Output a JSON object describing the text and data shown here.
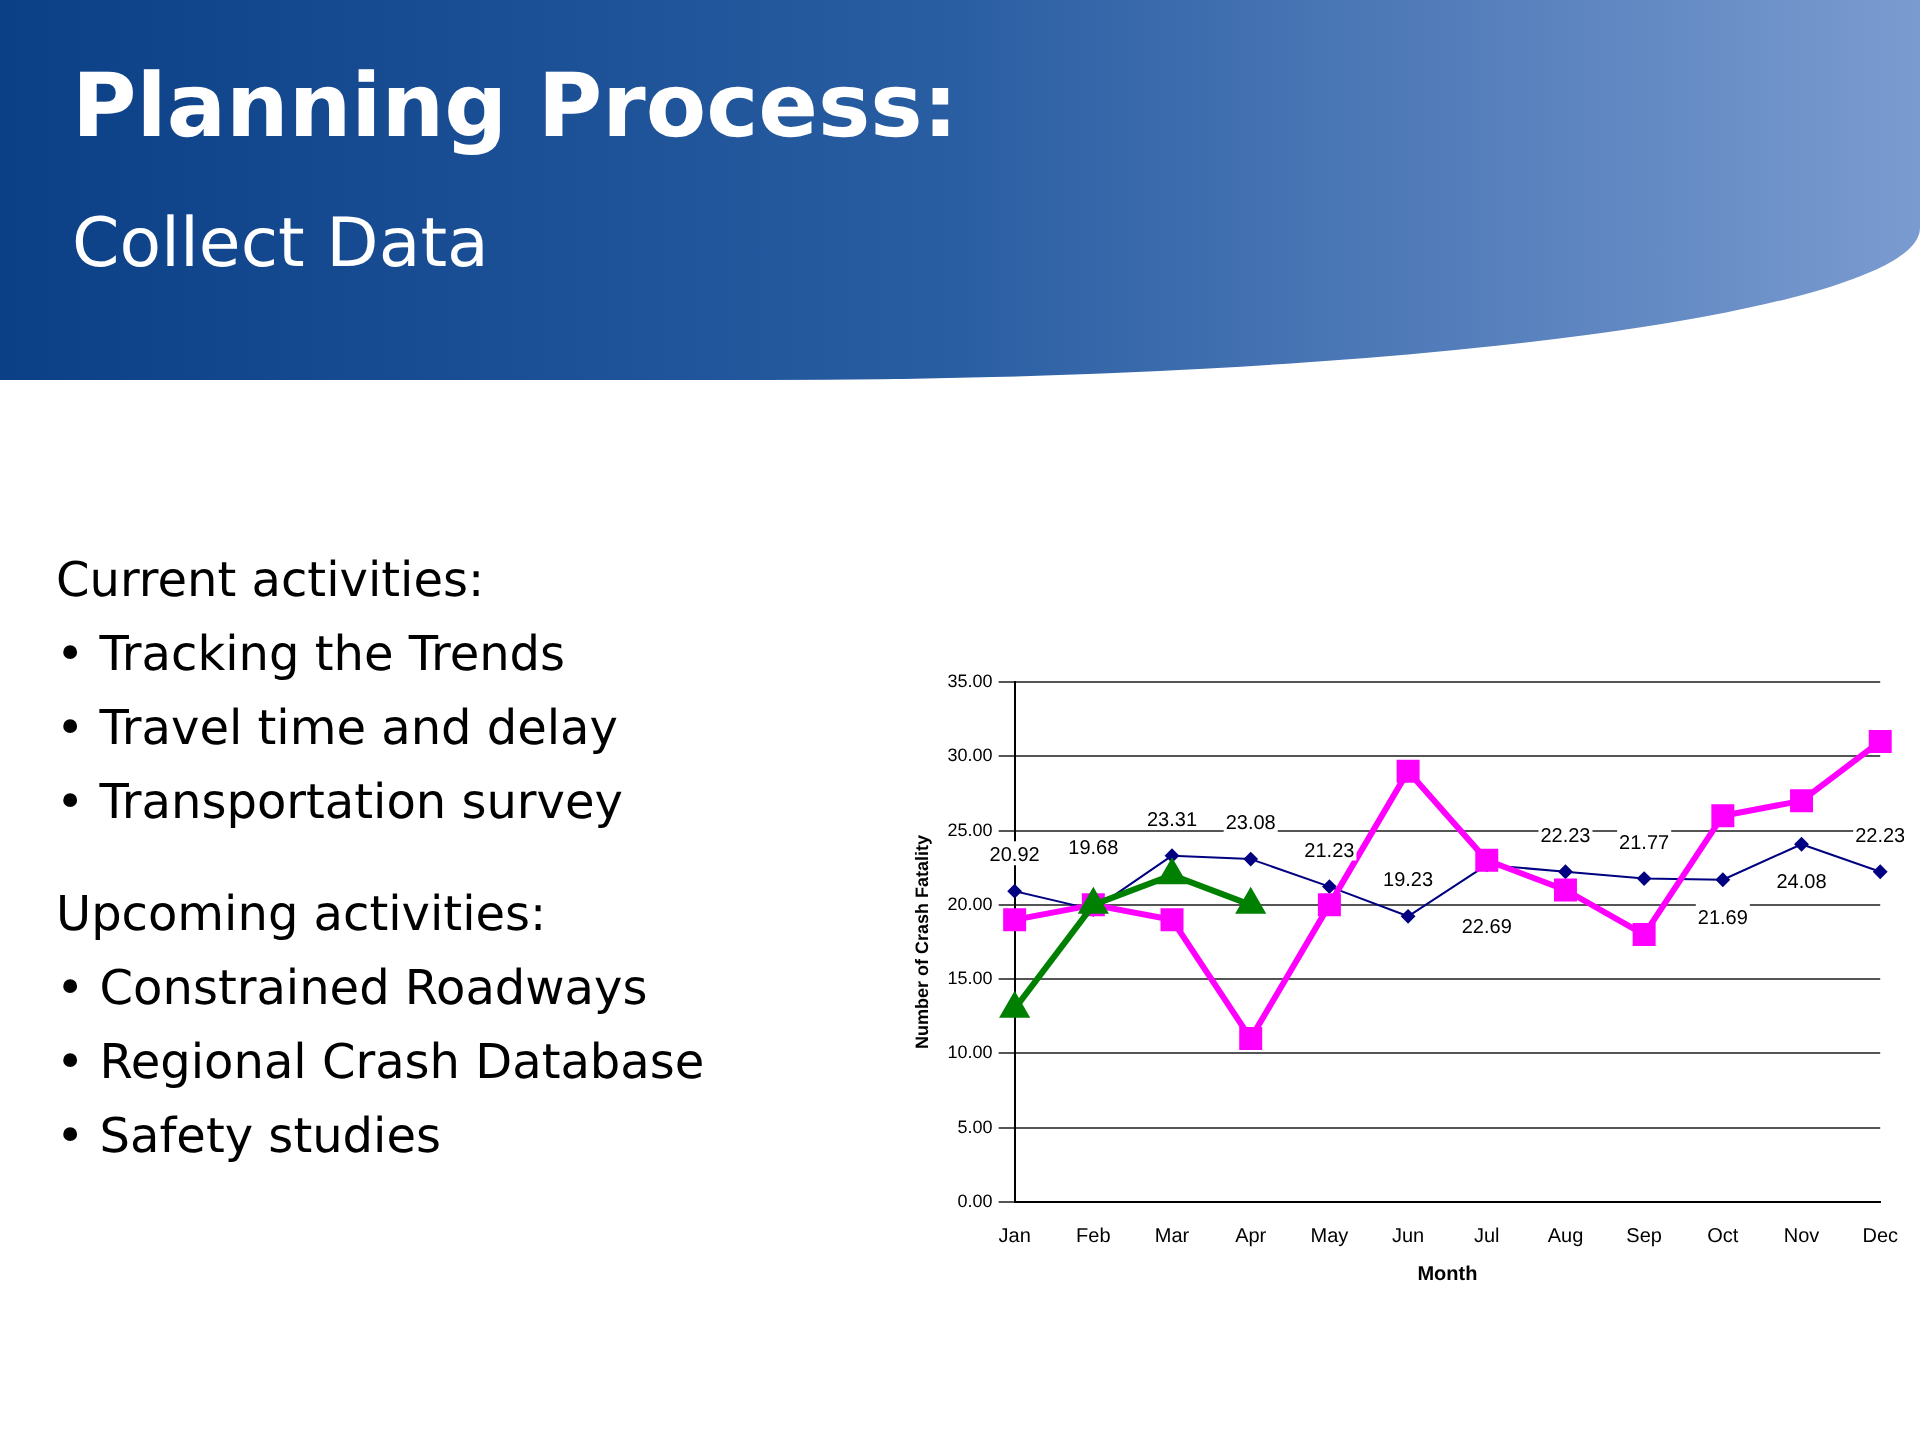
{
  "chart_data": {
    "type": "line",
    "title": "Planning Process:",
    "subtitle": "Collect Data",
    "xlabel": "Month",
    "ylabel": "Number of Crash Fatality",
    "categories": [
      "Jan",
      "Feb",
      "Mar",
      "Apr",
      "May",
      "Jun",
      "Jul",
      "Aug",
      "Sep",
      "Oct",
      "Nov",
      "Dec"
    ],
    "series": [
      {
        "color": "#000080",
        "marker": "diamond",
        "values": [
          20.92,
          19.68,
          23.31,
          23.08,
          21.23,
          19.23,
          22.69,
          22.23,
          21.77,
          21.69,
          24.08,
          22.23
        ],
        "value_labels": [
          "20.92",
          "19.68",
          "23.31",
          "23.08",
          "21.23",
          "19.23",
          "22.69",
          "22.23",
          "21.77",
          "21.69",
          "24.08",
          "22.23"
        ]
      },
      {
        "color": "#ff00ff",
        "marker": "square",
        "values": [
          19,
          20,
          19,
          11,
          20,
          29,
          23,
          21,
          18,
          26,
          27,
          31
        ]
      },
      {
        "color": "#008000",
        "marker": "triangle",
        "values": [
          13,
          20,
          22,
          20,
          null,
          null,
          null,
          null,
          null,
          null,
          null,
          null
        ]
      }
    ],
    "ylim": [
      0,
      35
    ],
    "yticks": [
      {
        "value": 0,
        "label": "0.00"
      },
      {
        "value": 5,
        "label": "5.00"
      },
      {
        "value": 10,
        "label": "10.00"
      },
      {
        "value": 15,
        "label": "15.00"
      },
      {
        "value": 20,
        "label": "20.00"
      },
      {
        "value": 25,
        "label": "25.00"
      },
      {
        "value": 30,
        "label": "30.00"
      },
      {
        "value": 35,
        "label": "35.00"
      }
    ],
    "grid": "y",
    "legend": false,
    "annotations": [
      "Current activities:",
      "• Tracking the Trends",
      "• Travel time and delay",
      "• Transportation survey",
      "Upcoming activities:",
      "• Constrained Roadways",
      "• Regional Crash Database",
      "• Safety studies"
    ]
  }
}
